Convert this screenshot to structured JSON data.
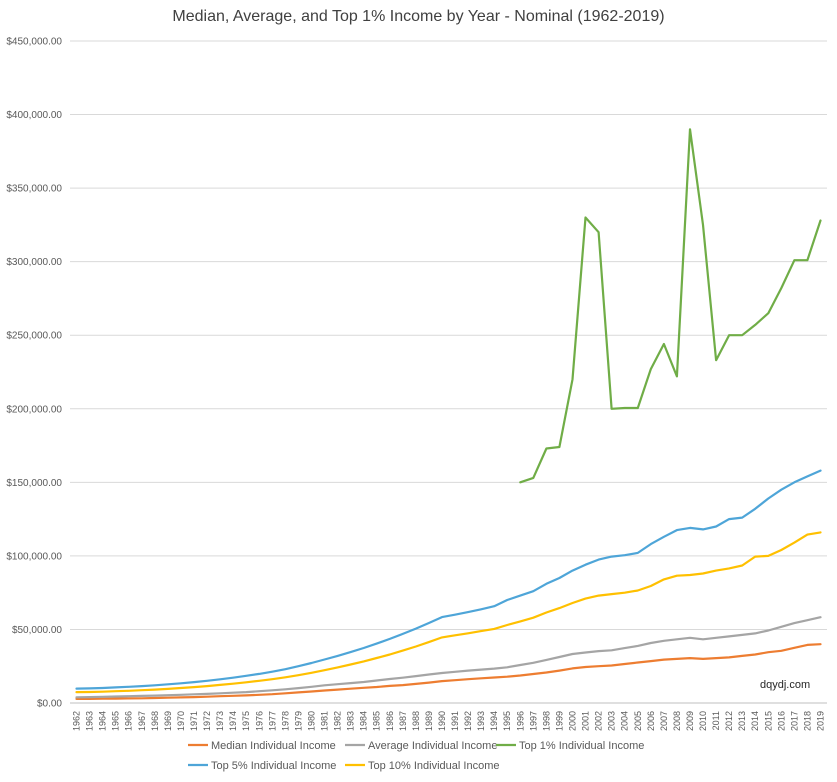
{
  "chart_data": {
    "type": "line",
    "title": "Median, Average, and Top 1% Income by Year - Nominal (1962-2019)",
    "xlabel": "",
    "ylabel": "",
    "ylim": [
      0,
      450000
    ],
    "y_ticks": [
      "$0.00",
      "$50,000.00",
      "$100,000.00",
      "$150,000.00",
      "$200,000.00",
      "$250,000.00",
      "$300,000.00",
      "$350,000.00",
      "$400,000.00",
      "$450,000.00"
    ],
    "y_tick_values": [
      0,
      50000,
      100000,
      150000,
      200000,
      250000,
      300000,
      350000,
      400000,
      450000
    ],
    "grid": true,
    "legend_position": "bottom",
    "watermark": "dqydj.com",
    "categories": [
      "1962",
      "1963",
      "1964",
      "1965",
      "1966",
      "1967",
      "1968",
      "1969",
      "1970",
      "1971",
      "1972",
      "1973",
      "1974",
      "1975",
      "1976",
      "1977",
      "1978",
      "1979",
      "1980",
      "1981",
      "1982",
      "1983",
      "1984",
      "1985",
      "1986",
      "1987",
      "1988",
      "1989",
      "1990",
      "1991",
      "1992",
      "1993",
      "1994",
      "1995",
      "1996",
      "1997",
      "1998",
      "1999",
      "2000",
      "2001",
      "2002",
      "2003",
      "2004",
      "2005",
      "2006",
      "2007",
      "2008",
      "2009",
      "2010",
      "2011",
      "2012",
      "2013",
      "2014",
      "2015",
      "2016",
      "2017",
      "2018",
      "2019"
    ],
    "series": [
      {
        "name": "Median Individual Income",
        "color": "#ed7d31",
        "values": [
          2800,
          2800,
          2900,
          3000,
          3100,
          3200,
          3400,
          3600,
          3800,
          4000,
          4300,
          4600,
          4900,
          5200,
          5600,
          6000,
          6600,
          7200,
          7800,
          8500,
          9100,
          9700,
          10300,
          10900,
          11600,
          12200,
          13000,
          13900,
          14900,
          15500,
          16200,
          16800,
          17300,
          17900,
          18700,
          19700,
          20700,
          22000,
          23500,
          24500,
          25000,
          25500,
          26500,
          27500,
          28500,
          29500,
          30000,
          30500,
          30000,
          30500,
          31000,
          32000,
          33000,
          34500,
          35500,
          37500,
          39500,
          40000
        ]
      },
      {
        "name": "Average Individual Income",
        "color": "#a5a5a5",
        "values": [
          3900,
          4000,
          4200,
          4400,
          4600,
          4800,
          5000,
          5300,
          5600,
          5900,
          6200,
          6600,
          7000,
          7400,
          8000,
          8600,
          9300,
          10100,
          11000,
          12000,
          12800,
          13500,
          14300,
          15300,
          16300,
          17200,
          18300,
          19400,
          20400,
          21200,
          22000,
          22700,
          23400,
          24300,
          25800,
          27300,
          29300,
          31300,
          33300,
          34300,
          35300,
          35800,
          37300,
          38800,
          40800,
          42300,
          43300,
          44300,
          43300,
          44300,
          45300,
          46300,
          47300,
          49300,
          51800,
          54300,
          56300,
          58300
        ]
      },
      {
        "name": "Top 1% Individual Income",
        "color": "#70ad47",
        "values": [
          null,
          null,
          null,
          null,
          null,
          null,
          null,
          null,
          null,
          null,
          null,
          null,
          null,
          null,
          null,
          null,
          null,
          null,
          null,
          null,
          null,
          null,
          null,
          null,
          null,
          null,
          null,
          null,
          null,
          null,
          null,
          null,
          null,
          null,
          150000,
          153000,
          173000,
          174000,
          220000,
          330000,
          320000,
          200000,
          200500,
          200500,
          227000,
          244000,
          222000,
          390000,
          325000,
          233000,
          250000,
          250000,
          257000,
          265000,
          282000,
          301000,
          301000,
          328000
        ]
      },
      {
        "name": "Top 5% Individual Income",
        "color": "#4ea5d8",
        "values": [
          9800,
          9900,
          10200,
          10600,
          11000,
          11500,
          12000,
          12700,
          13400,
          14200,
          15100,
          16100,
          17200,
          18500,
          19800,
          21300,
          23000,
          25000,
          27200,
          29600,
          32000,
          34600,
          37400,
          40400,
          43600,
          47000,
          50600,
          54400,
          58400,
          60000,
          61800,
          63700,
          65800,
          70000,
          73000,
          76000,
          81000,
          85000,
          90000,
          94000,
          97500,
          99500,
          100500,
          102000,
          108000,
          113000,
          117500,
          119000,
          118000,
          120000,
          125000,
          126000,
          132000,
          139000,
          145000,
          150000,
          154000,
          158000
        ]
      },
      {
        "name": "Top 10% Individual Income",
        "color": "#ffc000",
        "values": [
          7400,
          7500,
          7700,
          8000,
          8300,
          8700,
          9100,
          9600,
          10200,
          10800,
          11500,
          12300,
          13100,
          14100,
          15100,
          16200,
          17500,
          18900,
          20500,
          22300,
          24200,
          26200,
          28300,
          30600,
          33000,
          35600,
          38400,
          41400,
          44600,
          46000,
          47400,
          48900,
          50400,
          53000,
          55500,
          58000,
          61500,
          64500,
          68000,
          71000,
          73000,
          74000,
          75000,
          76500,
          79500,
          84000,
          86500,
          87000,
          88000,
          90000,
          91500,
          93500,
          99500,
          100000,
          104000,
          109000,
          114500,
          116000
        ]
      }
    ]
  }
}
